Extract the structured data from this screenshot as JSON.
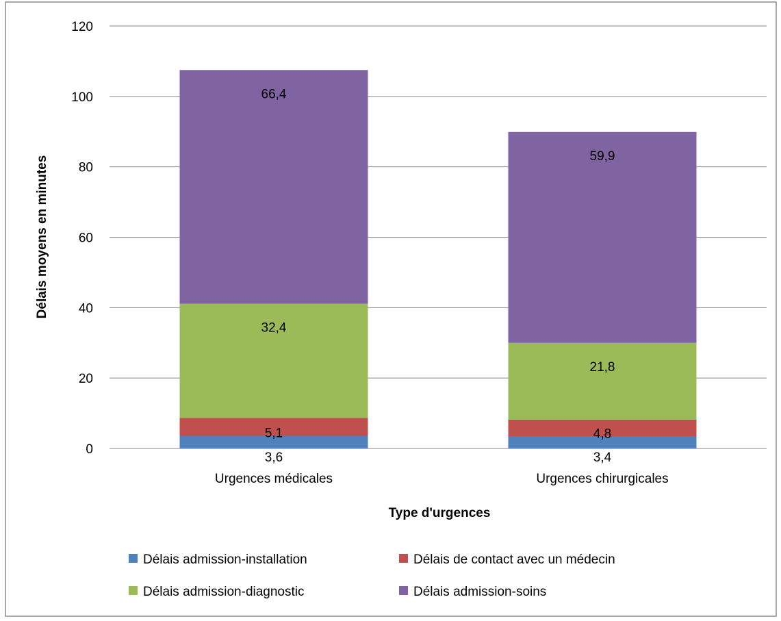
{
  "chart_data": {
    "type": "bar",
    "stacked": true,
    "categories": [
      "Urgences médicales",
      "Urgences chirurgicales"
    ],
    "series": [
      {
        "name": "Délais admission-installation",
        "values": [
          3.6,
          3.4
        ],
        "labels": [
          "3,6",
          "3,4"
        ],
        "color": "#4f81bd"
      },
      {
        "name": "Délais de contact avec un médecin",
        "values": [
          5.1,
          4.8
        ],
        "labels": [
          "5,1",
          "4,8"
        ],
        "color": "#c0504d"
      },
      {
        "name": "Délais admission-diagnostic",
        "values": [
          32.4,
          21.8
        ],
        "labels": [
          "32,4",
          "21,8"
        ],
        "color": "#9bbb59"
      },
      {
        "name": "Délais admission-soins",
        "values": [
          66.4,
          59.9
        ],
        "labels": [
          "66,4",
          "59,9"
        ],
        "color": "#8064a2"
      }
    ],
    "title": "",
    "xlabel": "Type d'urgences",
    "ylabel": "Délais moyens en minutes",
    "ylim": [
      0,
      120
    ],
    "yticks": [
      0,
      20,
      40,
      60,
      80,
      100,
      120
    ],
    "grid": true,
    "legend_position": "bottom"
  }
}
